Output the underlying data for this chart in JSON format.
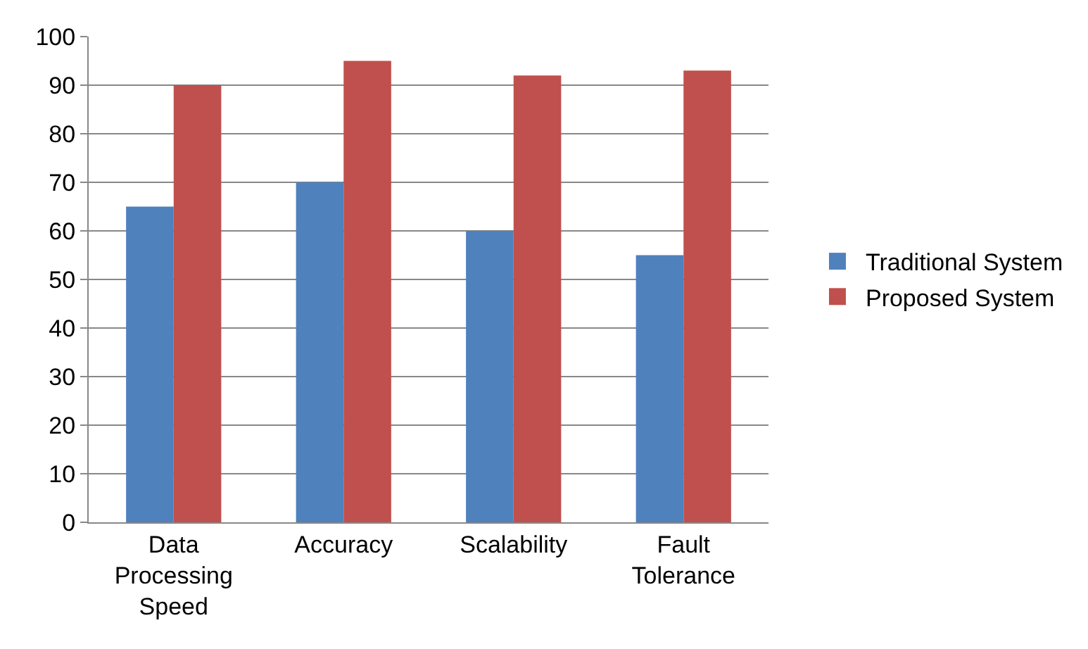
{
  "chart_data": {
    "type": "bar",
    "categories": [
      "Data Processing Speed",
      "Accuracy",
      "Scalability",
      "Fault Tolerance"
    ],
    "series": [
      {
        "name": "Traditional System",
        "color": "#4f81bd",
        "values": [
          65,
          70,
          60,
          55
        ]
      },
      {
        "name": "Proposed System",
        "color": "#c0504d",
        "values": [
          90,
          95,
          92,
          93
        ]
      }
    ],
    "ylim": [
      0,
      100
    ],
    "yticks": [
      0,
      10,
      20,
      30,
      40,
      50,
      60,
      70,
      80,
      90,
      100
    ],
    "grid": "y",
    "legend": "right"
  }
}
